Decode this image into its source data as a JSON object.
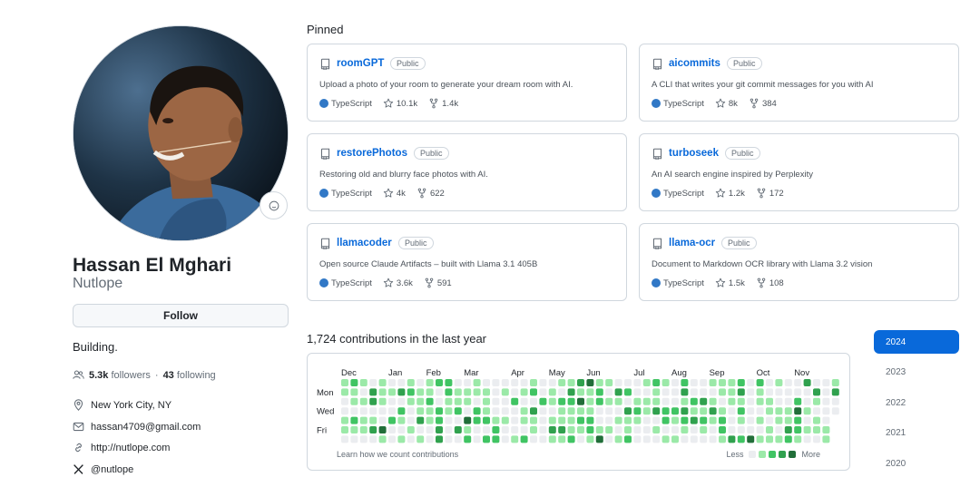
{
  "profile": {
    "name": "Hassan El Mghari",
    "login": "Nutlope",
    "follow_label": "Follow",
    "bio": "Building.",
    "followers_count": "5.3k",
    "followers_label": "followers",
    "separator": "·",
    "following_count": "43",
    "following_label": "following",
    "location": "New York City, NY",
    "email": "hassan4709@gmail.com",
    "website": "http://nutlope.com",
    "twitter": "@nutlope"
  },
  "pinned": {
    "title": "Pinned",
    "repos": [
      {
        "name": "roomGPT",
        "visibility": "Public",
        "description": "Upload a photo of your room to generate your dream room with AI.",
        "language": "TypeScript",
        "stars": "10.1k",
        "forks": "1.4k"
      },
      {
        "name": "aicommits",
        "visibility": "Public",
        "description": "A CLI that writes your git commit messages for you with AI",
        "language": "TypeScript",
        "stars": "8k",
        "forks": "384"
      },
      {
        "name": "restorePhotos",
        "visibility": "Public",
        "description": "Restoring old and blurry face photos with AI.",
        "language": "TypeScript",
        "stars": "4k",
        "forks": "622"
      },
      {
        "name": "turboseek",
        "visibility": "Public",
        "description": "An AI search engine inspired by Perplexity",
        "language": "TypeScript",
        "stars": "1.2k",
        "forks": "172"
      },
      {
        "name": "llamacoder",
        "visibility": "Public",
        "description": "Open source Claude Artifacts – built with Llama 3.1 405B",
        "language": "TypeScript",
        "stars": "3.6k",
        "forks": "591"
      },
      {
        "name": "llama-ocr",
        "visibility": "Public",
        "description": "Document to Markdown OCR library with Llama 3.2 vision",
        "language": "TypeScript",
        "stars": "1.5k",
        "forks": "108"
      }
    ]
  },
  "contributions": {
    "title": "1,724 contributions in the last year",
    "months": [
      "Dec",
      "Jan",
      "Feb",
      "Mar",
      "Apr",
      "May",
      "Jun",
      "Jul",
      "Aug",
      "Sep",
      "Oct",
      "Nov"
    ],
    "day_labels": [
      "Mon",
      "Wed",
      "Fri"
    ],
    "learn_link": "Learn how we count contributions",
    "legend_less": "Less",
    "legend_more": "More",
    "colors": [
      "#ebedf0",
      "#9be9a8",
      "#40c463",
      "#30a14e",
      "#216e39"
    ]
  },
  "years": {
    "items": [
      "2024",
      "2023",
      "2022",
      "2021",
      "2020"
    ],
    "active": "2024"
  }
}
